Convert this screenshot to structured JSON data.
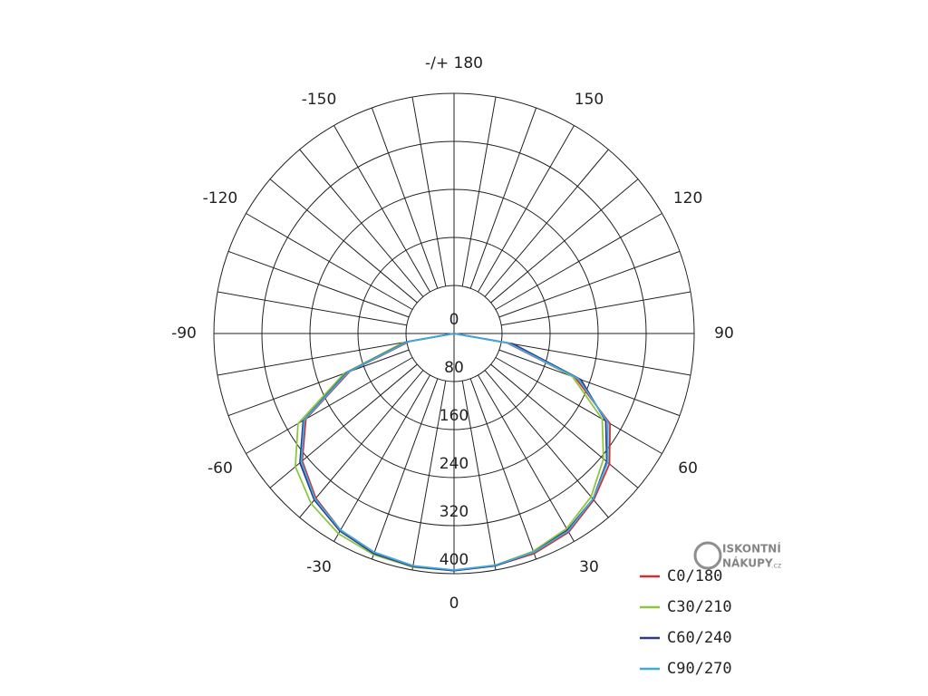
{
  "chart_data": {
    "type": "polar",
    "x": [
      -90,
      -80,
      -70,
      -60,
      -50,
      -40,
      -30,
      -20,
      -10,
      0,
      10,
      20,
      30,
      40,
      50,
      60,
      70,
      80,
      90
    ],
    "series": [
      {
        "name": "C0/180",
        "color": "#d0312d",
        "values": [
          0,
          75,
          185,
          285,
          330,
          358,
          378,
          388,
          393,
          395,
          393,
          390,
          382,
          362,
          338,
          300,
          215,
          90,
          0
        ]
      },
      {
        "name": "C30/210",
        "color": "#8dc63f",
        "values": [
          0,
          85,
          195,
          300,
          345,
          370,
          385,
          392,
          395,
          395,
          392,
          386,
          375,
          355,
          325,
          285,
          210,
          95,
          0
        ]
      },
      {
        "name": "C60/240",
        "color": "#2e3a87",
        "values": [
          0,
          80,
          190,
          290,
          335,
          362,
          380,
          390,
          394,
          395,
          393,
          388,
          378,
          360,
          332,
          292,
          225,
          100,
          0
        ]
      },
      {
        "name": "C90/270",
        "color": "#3fa9e0",
        "values": [
          0,
          78,
          188,
          288,
          332,
          360,
          378,
          388,
          393,
          394,
          392,
          388,
          380,
          360,
          334,
          296,
          220,
          92,
          0
        ]
      }
    ],
    "ylim": [
      0,
      400
    ],
    "yticks": [
      0,
      80,
      160,
      240,
      320,
      400
    ],
    "angle_ticks": [
      {
        "value": 180,
        "label": "-/+ 180"
      },
      -150,
      -120,
      -90,
      -60,
      -30,
      0,
      30,
      60,
      90,
      120,
      150
    ],
    "angle_grid_step": 10,
    "grid": true
  },
  "watermark": {
    "line1": "ISKONTNÍ",
    "line2": "NÁKUPY",
    "suffix": ".cz"
  }
}
